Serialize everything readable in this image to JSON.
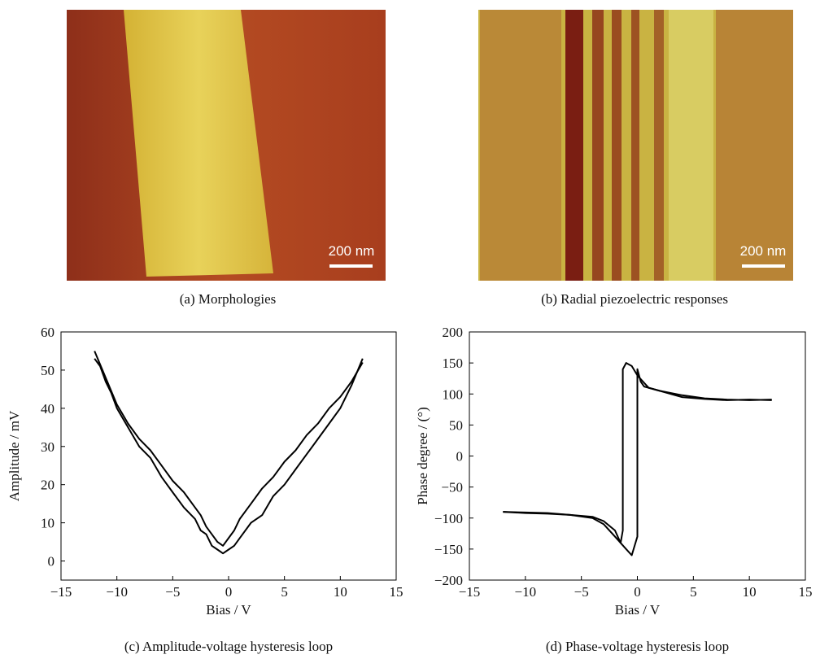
{
  "images": [
    {
      "caption": "(a) Morphologies",
      "scale_bar": "200 nm"
    },
    {
      "caption": "(b) Radial piezoelectric responses",
      "scale_bar": "200 nm"
    }
  ],
  "chart_data": [
    {
      "type": "line",
      "caption": "(c) Amplitude-voltage hysteresis loop",
      "x_label": "Bias / V",
      "y_label": "Amplitude / mV",
      "xlim": [
        -15,
        15
      ],
      "ylim": [
        -5,
        60
      ],
      "xticks": [
        {
          "value": -15,
          "label": "−15"
        },
        {
          "value": -10,
          "label": "−10"
        },
        {
          "value": -5,
          "label": "−5"
        },
        0,
        5,
        10,
        15
      ],
      "yticks": [
        0,
        10,
        20,
        30,
        40,
        50,
        60
      ],
      "series": [
        {
          "color": "#000000",
          "x": [
            -12,
            -11.5,
            -11,
            -10.5,
            -10,
            -9,
            -8,
            -7,
            -6,
            -5,
            -4,
            -3,
            -2.5,
            -2,
            -1.5,
            -1,
            -0.5,
            0,
            0.5,
            1,
            2,
            3,
            4,
            5,
            6,
            7,
            8,
            9,
            10,
            11,
            12
          ],
          "values": [
            53,
            51,
            47,
            44,
            40,
            35,
            30,
            27,
            22,
            18,
            14,
            11,
            8,
            7,
            4,
            3,
            2,
            3,
            4,
            6,
            10,
            12,
            17,
            20,
            24,
            28,
            32,
            36,
            40,
            46,
            53
          ]
        },
        {
          "color": "#000000",
          "x": [
            12,
            11,
            10,
            9,
            8,
            7,
            6,
            5,
            4,
            3,
            2,
            1,
            0.5,
            0,
            -0.5,
            -1,
            -1.5,
            -2,
            -2.5,
            -3,
            -4,
            -5,
            -6,
            -7,
            -8,
            -9,
            -10,
            -11,
            -12
          ],
          "values": [
            52,
            47,
            43,
            40,
            36,
            33,
            29,
            26,
            22,
            19,
            15,
            11,
            8,
            6,
            4,
            5,
            7,
            9,
            12,
            14,
            18,
            21,
            25,
            29,
            32,
            36,
            41,
            48,
            55
          ]
        }
      ]
    },
    {
      "type": "line",
      "caption": "(d) Phase-voltage hysteresis loop",
      "x_label": "Bias / V",
      "y_label": "Phase degree / (°)",
      "xlim": [
        -15,
        15
      ],
      "ylim": [
        -200,
        200
      ],
      "xticks": [
        {
          "value": -15,
          "label": "−15"
        },
        {
          "value": -10,
          "label": "−10"
        },
        {
          "value": -5,
          "label": "−5"
        },
        0,
        5,
        10,
        15
      ],
      "yticks": [
        {
          "value": -200,
          "label": "−200"
        },
        {
          "value": -150,
          "label": "−150"
        },
        {
          "value": -100,
          "label": "−100"
        },
        {
          "value": -50,
          "label": "−50"
        },
        0,
        50,
        100,
        150,
        200
      ],
      "series": [
        {
          "color": "#000000",
          "x": [
            -12,
            -10,
            -8,
            -6,
            -4,
            -3,
            -2,
            -1.5,
            -1,
            -0.5,
            0,
            0,
            0.3,
            0.6,
            1,
            2,
            3,
            4,
            6,
            8,
            10,
            12
          ],
          "values": [
            -90,
            -92,
            -93,
            -95,
            -98,
            -105,
            -120,
            -140,
            -150,
            -160,
            -130,
            140,
            120,
            112,
            110,
            105,
            100,
            95,
            92,
            90,
            91,
            90
          ]
        },
        {
          "color": "#000000",
          "x": [
            12,
            10,
            8,
            6,
            4,
            2,
            1,
            0.5,
            0,
            -0.5,
            -1,
            -1.3,
            -1.3,
            -1.5,
            -2,
            -3,
            -4,
            -6,
            -8,
            -10,
            -12
          ],
          "values": [
            91,
            90,
            91,
            93,
            98,
            105,
            110,
            120,
            130,
            145,
            150,
            140,
            -120,
            -140,
            -130,
            -110,
            -100,
            -95,
            -92,
            -91,
            -90
          ]
        }
      ]
    }
  ]
}
